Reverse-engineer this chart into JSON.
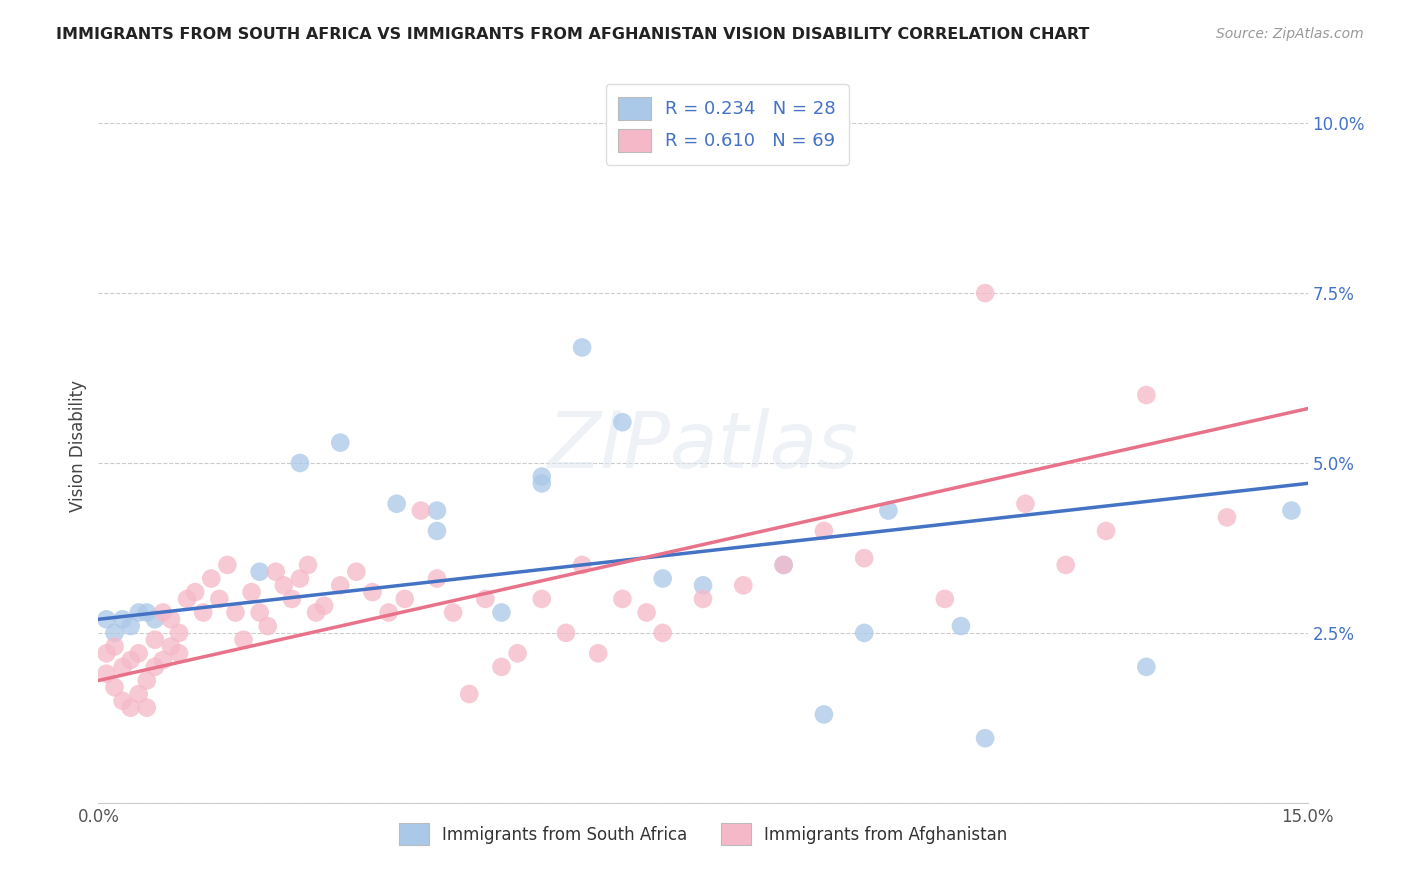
{
  "title": "IMMIGRANTS FROM SOUTH AFRICA VS IMMIGRANTS FROM AFGHANISTAN VISION DISABILITY CORRELATION CHART",
  "source": "Source: ZipAtlas.com",
  "ylabel": "Vision Disability",
  "xlim": [
    0.0,
    0.15
  ],
  "ylim": [
    0.0,
    0.105
  ],
  "yticks": [
    0.0,
    0.025,
    0.05,
    0.075,
    0.1
  ],
  "ytick_labels": [
    "",
    "2.5%",
    "5.0%",
    "7.5%",
    "10.0%"
  ],
  "xticks": [
    0.0,
    0.025,
    0.05,
    0.075,
    0.1,
    0.125,
    0.15
  ],
  "xtick_labels": [
    "0.0%",
    "",
    "",
    "",
    "",
    "",
    "15.0%"
  ],
  "watermark": "ZIPatlas",
  "south_africa_color": "#aac8e8",
  "south_africa_line_color": "#4472c4",
  "afghanistan_color": "#f5b8c8",
  "afghanistan_line_color": "#e8728a",
  "legend_label_color": "#4472c4",
  "sa_line_start_y": 0.027,
  "sa_line_end_y": 0.047,
  "af_line_start_y": 0.018,
  "af_line_end_y": 0.058,
  "sa_x": [
    0.001,
    0.002,
    0.003,
    0.004,
    0.005,
    0.006,
    0.007,
    0.02,
    0.025,
    0.03,
    0.037,
    0.042,
    0.05,
    0.055,
    0.06,
    0.065,
    0.07,
    0.09,
    0.098,
    0.107,
    0.11,
    0.13,
    0.148,
    0.042,
    0.055,
    0.075,
    0.085,
    0.095
  ],
  "sa_y": [
    0.027,
    0.025,
    0.027,
    0.026,
    0.028,
    0.028,
    0.027,
    0.034,
    0.05,
    0.053,
    0.044,
    0.043,
    0.028,
    0.047,
    0.067,
    0.056,
    0.033,
    0.013,
    0.043,
    0.026,
    0.0095,
    0.02,
    0.043,
    0.04,
    0.048,
    0.032,
    0.035,
    0.025
  ],
  "af_x": [
    0.001,
    0.001,
    0.002,
    0.002,
    0.003,
    0.003,
    0.004,
    0.004,
    0.005,
    0.005,
    0.006,
    0.006,
    0.007,
    0.007,
    0.008,
    0.008,
    0.009,
    0.009,
    0.01,
    0.01,
    0.011,
    0.012,
    0.013,
    0.014,
    0.015,
    0.016,
    0.017,
    0.018,
    0.019,
    0.02,
    0.021,
    0.022,
    0.023,
    0.024,
    0.025,
    0.026,
    0.027,
    0.028,
    0.03,
    0.032,
    0.034,
    0.036,
    0.038,
    0.04,
    0.042,
    0.044,
    0.046,
    0.048,
    0.05,
    0.052,
    0.055,
    0.058,
    0.06,
    0.062,
    0.065,
    0.068,
    0.07,
    0.075,
    0.08,
    0.085,
    0.09,
    0.095,
    0.105,
    0.11,
    0.115,
    0.12,
    0.125,
    0.13,
    0.14
  ],
  "af_y": [
    0.019,
    0.022,
    0.017,
    0.023,
    0.015,
    0.02,
    0.014,
    0.021,
    0.016,
    0.022,
    0.014,
    0.018,
    0.02,
    0.024,
    0.021,
    0.028,
    0.023,
    0.027,
    0.025,
    0.022,
    0.03,
    0.031,
    0.028,
    0.033,
    0.03,
    0.035,
    0.028,
    0.024,
    0.031,
    0.028,
    0.026,
    0.034,
    0.032,
    0.03,
    0.033,
    0.035,
    0.028,
    0.029,
    0.032,
    0.034,
    0.031,
    0.028,
    0.03,
    0.043,
    0.033,
    0.028,
    0.016,
    0.03,
    0.02,
    0.022,
    0.03,
    0.025,
    0.035,
    0.022,
    0.03,
    0.028,
    0.025,
    0.03,
    0.032,
    0.035,
    0.04,
    0.036,
    0.03,
    0.075,
    0.044,
    0.035,
    0.04,
    0.06,
    0.042
  ]
}
